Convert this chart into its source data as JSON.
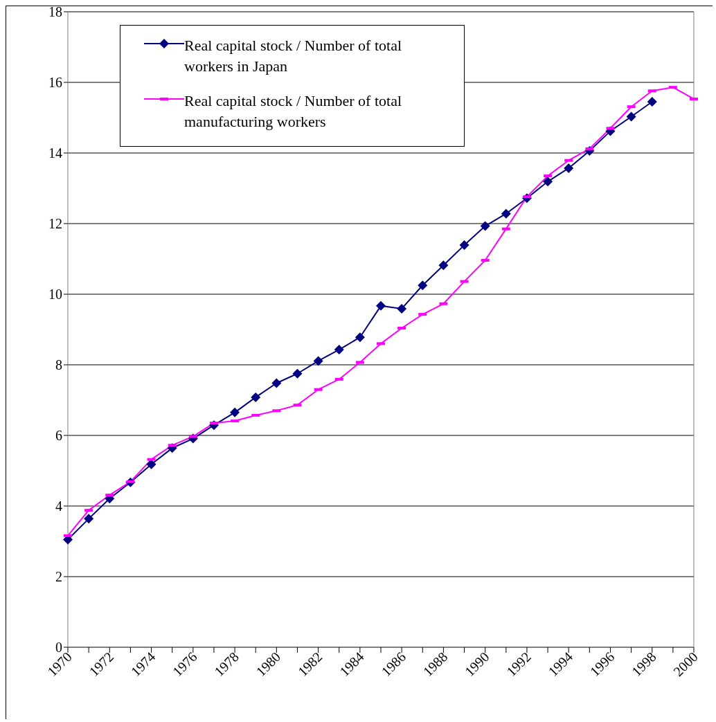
{
  "chart_data": {
    "type": "line",
    "categories": [
      "1970",
      null,
      "1972",
      null,
      "1974",
      null,
      "1976",
      null,
      "1978",
      null,
      "1980",
      null,
      "1982",
      null,
      "1984",
      null,
      "1986",
      null,
      "1988",
      null,
      "1990",
      null,
      "1992",
      null,
      "1994",
      null,
      "1996",
      null,
      "1998",
      null,
      "2000"
    ],
    "series": [
      {
        "name": "Real capital stock / Number of total workers in Japan",
        "color": "#000080",
        "marker": "diamond",
        "values": [
          3.05,
          3.64,
          4.21,
          4.67,
          5.18,
          5.64,
          5.91,
          6.29,
          6.65,
          7.08,
          7.48,
          7.75,
          8.11,
          8.43,
          8.78,
          9.67,
          9.59,
          10.25,
          10.82,
          11.39,
          11.93,
          12.28,
          12.72,
          13.19,
          13.57,
          14.06,
          14.62,
          15.03,
          15.45,
          null,
          null
        ]
      },
      {
        "name": "Real capital stock / Number of total manufacturing workers",
        "color": "#ff00ff",
        "marker": "square",
        "values": [
          3.16,
          3.88,
          4.31,
          4.69,
          5.32,
          5.72,
          5.97,
          6.35,
          6.41,
          6.57,
          6.7,
          6.86,
          7.3,
          7.59,
          8.07,
          8.6,
          9.04,
          9.43,
          9.73,
          10.36,
          10.96,
          11.85,
          12.76,
          13.35,
          13.79,
          14.12,
          14.7,
          15.31,
          15.76,
          15.86,
          15.53
        ]
      }
    ],
    "ylim": [
      0,
      18
    ],
    "yticks": [
      0,
      2,
      4,
      6,
      8,
      10,
      12,
      14,
      16,
      18
    ],
    "grid": "y",
    "legend": "top left"
  }
}
